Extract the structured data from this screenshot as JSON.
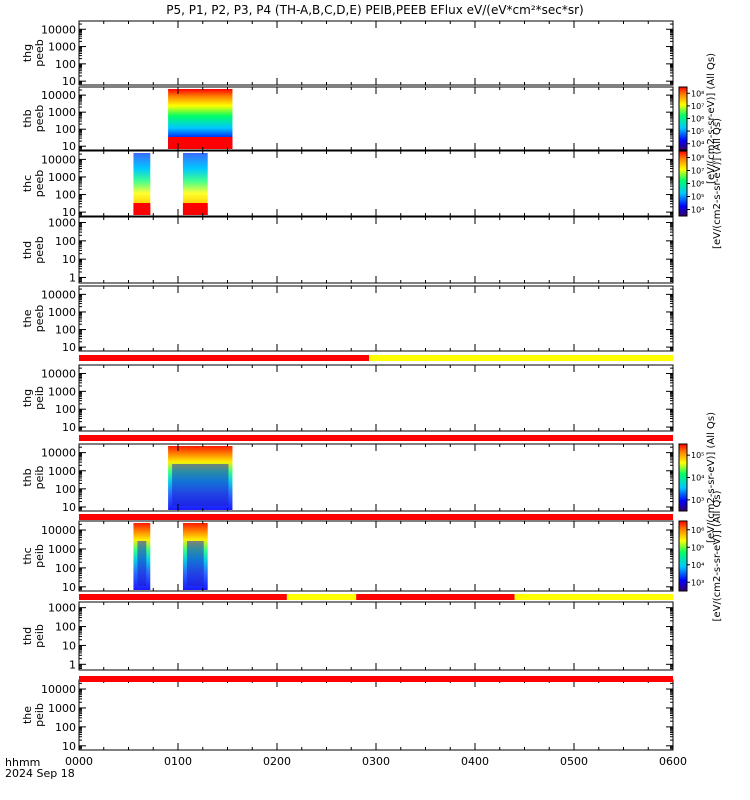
{
  "title": "P5, P1, P2, P3, P4 (TH-A,B,C,D,E) PEIB,PEEB EFlux eV/(eV*cm²*sec*sr)",
  "chart_data": {
    "type": "heatmap",
    "x_axis": {
      "label_top": "hhmm",
      "label_bottom": "2024 Sep 18",
      "ticks": [
        "0000",
        "0100",
        "0200",
        "0300",
        "0400",
        "0500",
        "0600"
      ],
      "range_hours": [
        0,
        6
      ]
    },
    "panels": [
      {
        "probe": "thg",
        "product": "peeb",
        "scale": "log",
        "ticks": [
          "10",
          "100",
          "1000",
          "10000"
        ],
        "ylim": [
          6,
          30000
        ],
        "blocks": []
      },
      {
        "probe": "thb",
        "product": "peeb",
        "scale": "log",
        "ticks": [
          "10",
          "100",
          "1000",
          "10000"
        ],
        "ylim": [
          6,
          30000
        ],
        "blocks": [
          {
            "t0": 0.9,
            "t1": 1.55
          }
        ]
      },
      {
        "probe": "thc",
        "product": "peeb",
        "scale": "log",
        "ticks": [
          "10",
          "100",
          "1000",
          "10000"
        ],
        "ylim": [
          6,
          30000
        ],
        "blocks": [
          {
            "t0": 0.55,
            "t1": 0.72
          },
          {
            "t0": 1.05,
            "t1": 1.3
          }
        ]
      },
      {
        "probe": "thd",
        "product": "peeb",
        "scale": "log",
        "ticks": [
          "1",
          "10",
          "100",
          "1000"
        ],
        "ylim": [
          0.5,
          2000
        ],
        "blocks": []
      },
      {
        "probe": "the",
        "product": "peeb",
        "scale": "log",
        "ticks": [
          "10",
          "100",
          "1000",
          "10000"
        ],
        "ylim": [
          6,
          30000
        ],
        "blocks": []
      },
      {
        "probe": "thg",
        "product": "peib",
        "scale": "log",
        "ticks": [
          "10",
          "100",
          "1000",
          "10000"
        ],
        "ylim": [
          6,
          30000
        ],
        "blocks": []
      },
      {
        "probe": "thb",
        "product": "peib",
        "scale": "log",
        "ticks": [
          "10",
          "100",
          "1000",
          "10000"
        ],
        "ylim": [
          6,
          30000
        ],
        "blocks": [
          {
            "t0": 0.9,
            "t1": 1.55
          }
        ]
      },
      {
        "probe": "thc",
        "product": "peib",
        "scale": "log",
        "ticks": [
          "10",
          "100",
          "1000",
          "10000"
        ],
        "ylim": [
          6,
          30000
        ],
        "blocks": [
          {
            "t0": 0.55,
            "t1": 0.72
          },
          {
            "t0": 1.05,
            "t1": 1.3
          }
        ]
      },
      {
        "probe": "thd",
        "product": "peib",
        "scale": "log",
        "ticks": [
          "1",
          "10",
          "100",
          "1000"
        ],
        "ylim": [
          0.5,
          2000
        ],
        "blocks": []
      },
      {
        "probe": "the",
        "product": "peib",
        "scale": "log",
        "ticks": [
          "10",
          "100",
          "1000",
          "10000"
        ],
        "ylim": [
          6,
          30000
        ],
        "blocks": []
      }
    ],
    "mode_bars": [
      {
        "after_panel": 4,
        "segments": [
          {
            "t0": 0,
            "t1": 2.93,
            "color": "#ff0000"
          },
          {
            "t0": 2.93,
            "t1": 6,
            "color": "#ffff00"
          }
        ]
      },
      {
        "after_panel": 5,
        "segments": [
          {
            "t0": 0,
            "t1": 6,
            "color": "#ff0000"
          }
        ]
      },
      {
        "after_panel": 6,
        "segments": [
          {
            "t0": 0,
            "t1": 6,
            "color": "#ff0000"
          }
        ]
      },
      {
        "after_panel": 7,
        "segments": [
          {
            "t0": 0,
            "t1": 2.1,
            "color": "#ff0000"
          },
          {
            "t0": 2.1,
            "t1": 2.8,
            "color": "#ffff00"
          },
          {
            "t0": 2.8,
            "t1": 4.4,
            "color": "#ff0000"
          },
          {
            "t0": 4.4,
            "t1": 6,
            "color": "#ffff00"
          }
        ]
      },
      {
        "after_panel": 8,
        "segments": [
          {
            "t0": 0,
            "t1": 6,
            "color": "#ff0000"
          }
        ]
      }
    ],
    "colorbars": [
      {
        "label": "[eV/(cm2-s-sr-eV)] (All Qs)",
        "ticks": [
          "10⁴",
          "10⁵",
          "10⁶",
          "10⁷",
          "10⁸"
        ]
      },
      {
        "label": "[eV/(cm2-s-sr-eV)] (All Qs)",
        "ticks": [
          "10⁴",
          "10⁵",
          "10⁶",
          "10⁷",
          "10⁸"
        ]
      },
      {
        "label": "[eV/(cm2-s-sr-eV)] (All Qs)",
        "ticks": [
          "10³",
          "10⁴",
          "10⁵"
        ]
      },
      {
        "label": "[eV/(cm2-s-sr-eV)] (All Qs)",
        "ticks": [
          "10³",
          "10⁴",
          "10⁵",
          "10⁶"
        ]
      }
    ]
  }
}
